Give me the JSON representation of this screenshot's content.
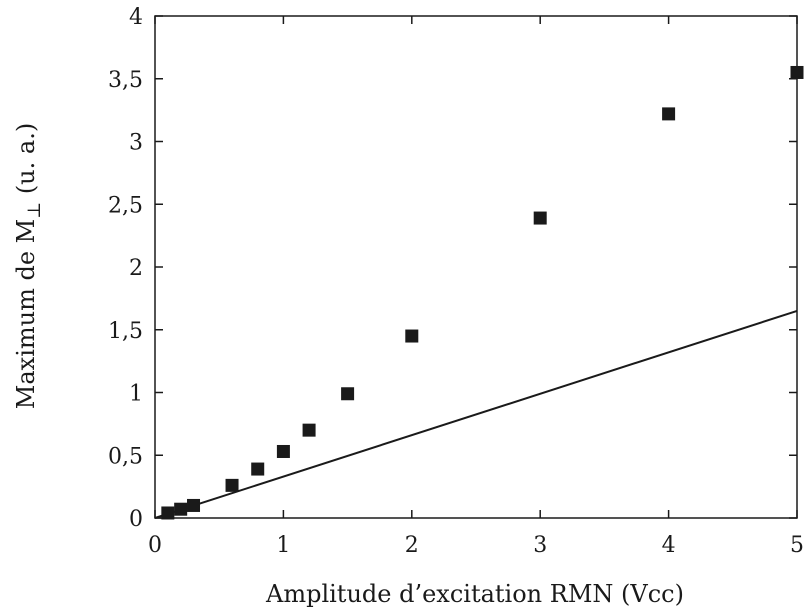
{
  "chart_data": {
    "type": "scatter",
    "xlabel": "Amplitude d’excitation RMN (Vcc)",
    "ylabel_main": "Maximum de M",
    "ylabel_sub": "⊥",
    "ylabel_unit": " (u. a.)",
    "xlim": [
      0,
      5
    ],
    "ylim": [
      0,
      4
    ],
    "x_ticks": [
      0,
      1,
      2,
      3,
      4,
      5
    ],
    "x_tick_labels": [
      "0",
      "1",
      "2",
      "3",
      "4",
      "5"
    ],
    "y_ticks": [
      0,
      0.5,
      1,
      1.5,
      2,
      2.5,
      3,
      3.5,
      4
    ],
    "y_tick_labels": [
      "0",
      "0,5",
      "1",
      "1,5",
      "2",
      "2,5",
      "3",
      "3,5",
      "4"
    ],
    "grid": false,
    "series": [
      {
        "marker": "square",
        "color": "#1a1a1a",
        "x": [
          0.1,
          0.2,
          0.3,
          0.6,
          0.8,
          1.0,
          1.2,
          1.5,
          2.0,
          3.0,
          4.0,
          5.0
        ],
        "y": [
          0.04,
          0.07,
          0.1,
          0.26,
          0.39,
          0.53,
          0.7,
          0.99,
          1.45,
          2.39,
          3.22,
          3.55
        ]
      }
    ],
    "line": {
      "color": "#1a1a1a",
      "x": [
        0,
        5
      ],
      "y": [
        0,
        1.65
      ]
    }
  }
}
